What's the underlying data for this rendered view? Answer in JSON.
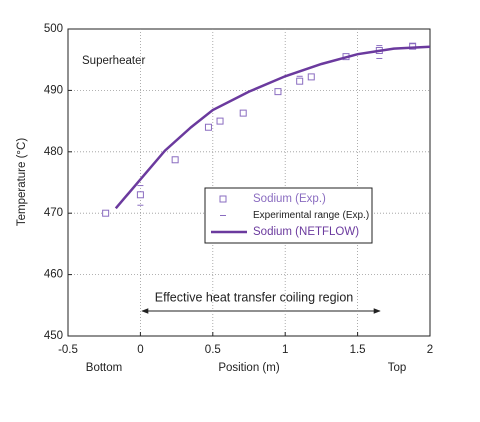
{
  "chart_data": {
    "type": "scatter",
    "x_label": "Position (m)",
    "y_label": "Temperature (°C)",
    "annotations": [
      "Superheater",
      "Effective heat transfer coiling region",
      "Bottom",
      "Top"
    ],
    "xlim": [
      -0.5,
      2
    ],
    "xticks": [
      -0.5,
      0,
      0.5,
      1,
      1.5,
      2
    ],
    "ylim": [
      450,
      500
    ],
    "yticks": [
      450,
      460,
      470,
      480,
      490,
      500
    ],
    "grid": true,
    "legend": "center-right",
    "series": [
      {
        "name": "Sodium (Exp.)",
        "style": "square",
        "color": "#8a6cc0",
        "x": [
          -0.24,
          0.0,
          0.24,
          0.47,
          0.55,
          0.71,
          0.95,
          1.1,
          1.18,
          1.42,
          1.65,
          1.88
        ],
        "values": [
          470,
          473,
          478.7,
          484,
          485,
          486.3,
          489.8,
          491.5,
          492.2,
          495.5,
          496.5,
          497.2
        ]
      },
      {
        "name": "Experimental range (Exp.)",
        "style": "dash",
        "color": "#8a6cc0",
        "x": [
          0.0,
          0.0,
          1.1,
          1.65,
          1.65,
          1.88
        ],
        "values": [
          471.3,
          474.5,
          492.3,
          495.2,
          497.3,
          497.6
        ]
      },
      {
        "name": "Sodium (NETFLOW)",
        "style": "line",
        "color": "#6b3a9e",
        "x": [
          -0.17,
          0,
          0.17,
          0.35,
          0.5,
          0.75,
          1,
          1.25,
          1.5,
          1.75,
          2
        ],
        "values": [
          470.8,
          475.5,
          480.2,
          484,
          486.8,
          489.8,
          492.3,
          494.3,
          495.9,
          496.8,
          497.1
        ]
      }
    ]
  }
}
